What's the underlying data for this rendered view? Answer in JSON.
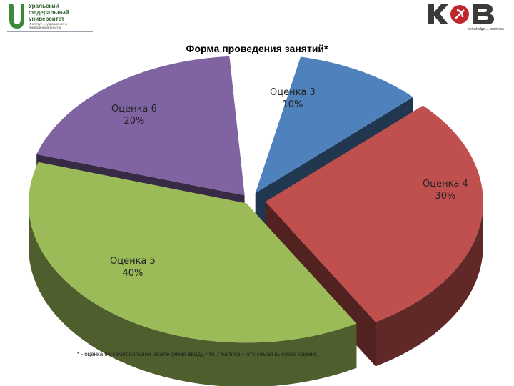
{
  "header": {
    "university_name": "Уральский федеральный университет",
    "university_sub": "Институт ... управления и предпринимательства",
    "brand_tagline": "knowledge ... business"
  },
  "colors": {
    "slice_3": "#4f81bd",
    "slice_4": "#c0504d",
    "slice_5": "#9bbb59",
    "slice_6": "#8064a2"
  },
  "chart_data": {
    "type": "pie",
    "title": "Форма проведения занятий*",
    "categories": [
      "Оценка 3",
      "Оценка 4",
      "Оценка 5",
      "Оценка 6"
    ],
    "values": [
      10,
      30,
      40,
      20
    ],
    "labels": [
      {
        "name": "Оценка 3",
        "pct": "10%"
      },
      {
        "name": "Оценка 4",
        "pct": "30%"
      },
      {
        "name": "Оценка 5",
        "pct": "40%"
      },
      {
        "name": "Оценка 6",
        "pct": "20%"
      }
    ],
    "style": "3d-exploded",
    "missing_share_note": "no slice for remaining share"
  },
  "footnote": "* - оценка по семибалльной шкале (имея ввиду, что 7 баллов – это самая высокая оценка)"
}
